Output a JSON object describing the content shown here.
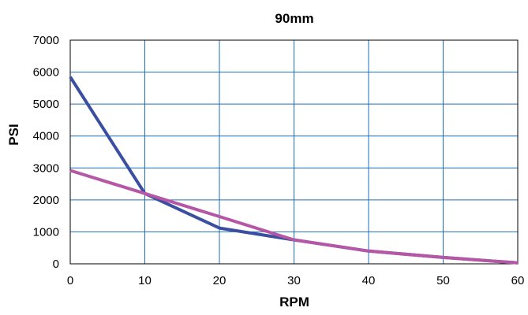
{
  "chart_data": {
    "type": "line",
    "title": "90mm",
    "xlabel": "RPM",
    "ylabel": "PSI",
    "xlim": [
      0,
      60
    ],
    "ylim": [
      0,
      7000
    ],
    "xticks": [
      0,
      10,
      20,
      30,
      40,
      50,
      60
    ],
    "yticks": [
      0,
      1000,
      2000,
      3000,
      4000,
      5000,
      6000,
      7000
    ],
    "grid": true,
    "legend": "none",
    "series": [
      {
        "color": "#3a4f9f",
        "x": [
          0,
          10,
          20,
          30,
          40,
          50,
          60
        ],
        "y": [
          5850,
          2200,
          1120,
          750,
          400,
          200,
          30
        ]
      },
      {
        "color": "#b556a6",
        "x": [
          0,
          10,
          20,
          30,
          40,
          50,
          60
        ],
        "y": [
          2920,
          2200,
          1480,
          750,
          400,
          200,
          30
        ]
      }
    ]
  },
  "colors": {
    "grid": "#1f6fb8",
    "frame": "#000000",
    "background": "#ffffff"
  }
}
